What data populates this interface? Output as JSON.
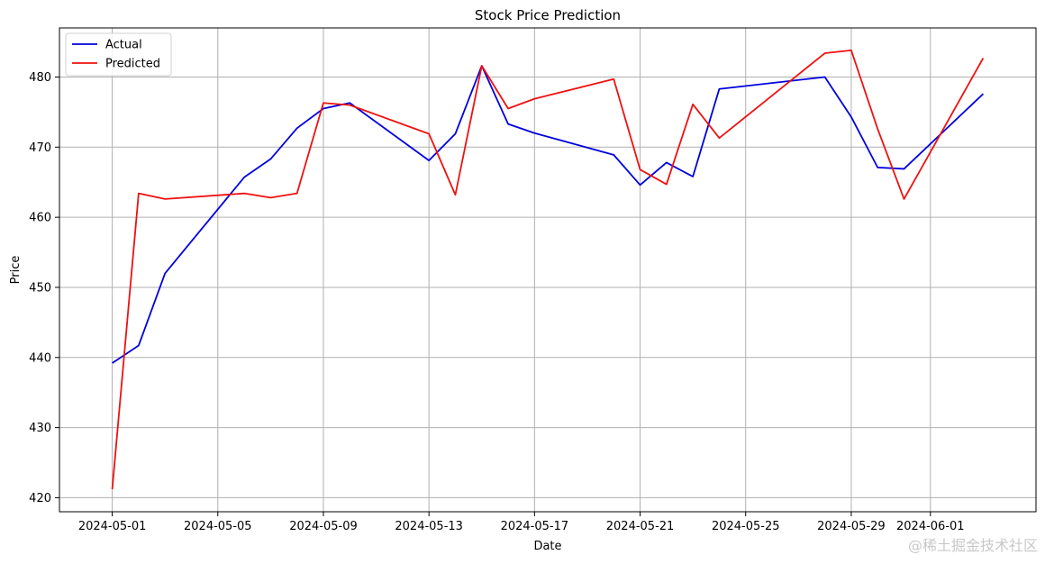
{
  "watermark": "@稀土掘金技术社区",
  "colors": {
    "actual": "#0000dd",
    "predicted": "#ee1111",
    "grid": "#b0b0b0",
    "axis": "#000000"
  },
  "chart_data": {
    "type": "line",
    "title": "Stock Price Prediction",
    "xlabel": "Date",
    "ylabel": "Price",
    "grid": true,
    "legend_position": "top-left",
    "xlim": [
      "2024-04-29",
      "2024-06-05"
    ],
    "ylim": [
      418,
      487
    ],
    "x_ticks": [
      "2024-05-01",
      "2024-05-05",
      "2024-05-09",
      "2024-05-13",
      "2024-05-17",
      "2024-05-21",
      "2024-05-25",
      "2024-05-29",
      "2024-06-01"
    ],
    "y_ticks": [
      420,
      430,
      440,
      450,
      460,
      470,
      480
    ],
    "series": [
      {
        "name": "Actual",
        "color": "#0000dd",
        "points": [
          [
            "2024-05-01",
            439.2
          ],
          [
            "2024-05-02",
            441.7
          ],
          [
            "2024-05-03",
            452.0
          ],
          [
            "2024-05-06",
            465.7
          ],
          [
            "2024-05-07",
            468.3
          ],
          [
            "2024-05-08",
            472.7
          ],
          [
            "2024-05-09",
            475.5
          ],
          [
            "2024-05-10",
            476.3
          ],
          [
            "2024-05-13",
            468.1
          ],
          [
            "2024-05-14",
            471.9
          ],
          [
            "2024-05-15",
            481.6
          ],
          [
            "2024-05-16",
            473.3
          ],
          [
            "2024-05-17",
            472.0
          ],
          [
            "2024-05-20",
            468.9
          ],
          [
            "2024-05-21",
            464.6
          ],
          [
            "2024-05-22",
            467.8
          ],
          [
            "2024-05-23",
            465.8
          ],
          [
            "2024-05-24",
            478.3
          ],
          [
            "2024-05-28",
            480.0
          ],
          [
            "2024-05-29",
            474.3
          ],
          [
            "2024-05-30",
            467.1
          ],
          [
            "2024-05-31",
            466.9
          ],
          [
            "2024-06-03",
            477.6
          ]
        ]
      },
      {
        "name": "Predicted",
        "color": "#ee1111",
        "points": [
          [
            "2024-05-01",
            421.2
          ],
          [
            "2024-05-02",
            463.4
          ],
          [
            "2024-05-03",
            462.6
          ],
          [
            "2024-05-06",
            463.4
          ],
          [
            "2024-05-07",
            462.8
          ],
          [
            "2024-05-08",
            463.4
          ],
          [
            "2024-05-09",
            476.3
          ],
          [
            "2024-05-10",
            476.0
          ],
          [
            "2024-05-13",
            471.9
          ],
          [
            "2024-05-14",
            463.2
          ],
          [
            "2024-05-15",
            481.6
          ],
          [
            "2024-05-16",
            475.5
          ],
          [
            "2024-05-17",
            476.9
          ],
          [
            "2024-05-20",
            479.7
          ],
          [
            "2024-05-21",
            466.8
          ],
          [
            "2024-05-22",
            464.7
          ],
          [
            "2024-05-23",
            476.1
          ],
          [
            "2024-05-24",
            471.3
          ],
          [
            "2024-05-28",
            483.4
          ],
          [
            "2024-05-29",
            483.8
          ],
          [
            "2024-05-30",
            472.6
          ],
          [
            "2024-05-31",
            462.6
          ],
          [
            "2024-06-03",
            482.7
          ]
        ]
      }
    ]
  }
}
